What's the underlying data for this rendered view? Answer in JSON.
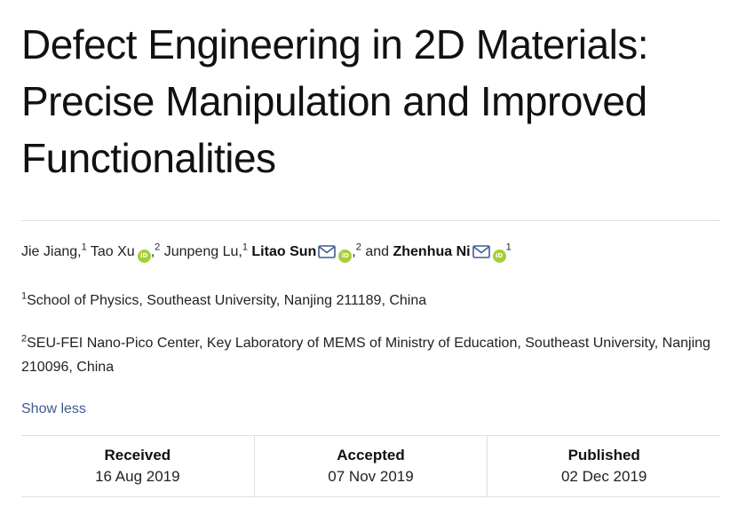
{
  "article": {
    "title_lines": [
      "Defect Engineering in 2D Materials:",
      "Precise Manipulation and Improved",
      "Functionalities"
    ]
  },
  "authors": [
    {
      "name": "Jie Jiang",
      "sup": "1",
      "sep": ", ",
      "orcid": false,
      "email": false,
      "bold": false
    },
    {
      "name": "Tao Xu",
      "sup": "2",
      "sep": " ",
      "orcid": true,
      "email": false,
      "bold": false
    },
    {
      "name": "Junpeng Lu",
      "sup": "1",
      "sep": " ",
      "orcid": false,
      "email": false,
      "bold": false
    },
    {
      "name": "Litao Sun",
      "sup": "2",
      "sep": " ",
      "orcid": true,
      "email": true,
      "bold": true
    },
    {
      "name": "Zhenhua Ni",
      "sup": "1",
      "sep": "",
      "orcid": true,
      "email": true,
      "bold": true
    }
  ],
  "authors_conjunction": "and",
  "orcid_icon_text": "iD",
  "affiliations": [
    {
      "sup": "1",
      "text": "School of Physics, Southeast University, Nanjing 211189, China"
    },
    {
      "sup": "2",
      "text": "SEU-FEI Nano-Pico Center, Key Laboratory of MEMS of Ministry of Education, Southeast University, Nanjing 210096, China"
    }
  ],
  "show_less_label": "Show less",
  "dates": [
    {
      "label": "Received",
      "value": "16 Aug 2019"
    },
    {
      "label": "Accepted",
      "value": "07 Nov 2019"
    },
    {
      "label": "Published",
      "value": "02 Dec 2019"
    }
  ],
  "colors": {
    "orcid": "#a6ce39",
    "link": "#3f5b8c",
    "divider": "#e0e0e0"
  }
}
